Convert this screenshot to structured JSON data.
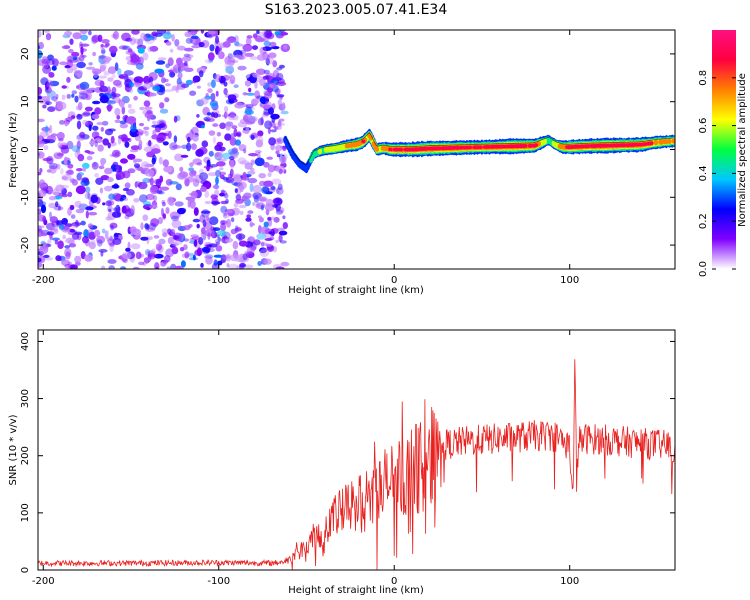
{
  "title": "S163.2023.005.07.41.E34",
  "chart_data": [
    {
      "type": "heatmap",
      "xlabel": "Height of straight line (km)",
      "ylabel": "Frequency (Hz)",
      "xlim": [
        -203,
        160
      ],
      "ylim": [
        -25,
        25
      ],
      "x_ticks": [
        "-200",
        "-100",
        "0",
        "100"
      ],
      "x_tick_values": [
        -200,
        -100,
        0,
        100
      ],
      "y_ticks": [
        "-20",
        "-10",
        "0",
        "10",
        "20"
      ],
      "y_tick_values": [
        -20,
        -10,
        0,
        10,
        20
      ],
      "colorbar": {
        "label": "Normalized spectral amplitude",
        "range": [
          0,
          1
        ],
        "ticks": [
          "0.0",
          "0.2",
          "0.4",
          "0.6",
          "0.8"
        ],
        "tick_values": [
          0.0,
          0.2,
          0.4,
          0.6,
          0.8
        ],
        "colormap": [
          "#ffffff",
          "#8000ff",
          "#0000ff",
          "#00c8ff",
          "#00ff40",
          "#ffff00",
          "#ff8000",
          "#ff0040",
          "#ff1080"
        ]
      },
      "noise_region": {
        "x_range": [
          -203,
          -62
        ],
        "amplitude_range": [
          0.05,
          0.3
        ]
      },
      "signal_ridge": {
        "x": [
          -62,
          -58,
          -54,
          -50,
          -46,
          -42,
          -38,
          -34,
          -30,
          -26,
          -22,
          -18,
          -14,
          -10,
          -6,
          -2,
          2,
          10,
          20,
          30,
          40,
          50,
          60,
          70,
          80,
          88,
          92,
          96,
          100,
          110,
          120,
          130,
          140,
          150,
          160
        ],
        "freq": [
          2.0,
          -1.0,
          -3.0,
          -4.0,
          -1.0,
          -0.3,
          0.0,
          0.2,
          0.5,
          0.8,
          1.0,
          1.5,
          3.0,
          0.0,
          0.3,
          0.0,
          0.0,
          0.0,
          0.2,
          0.3,
          0.4,
          0.5,
          0.6,
          0.7,
          0.8,
          2.0,
          1.0,
          0.5,
          0.5,
          0.7,
          0.8,
          0.9,
          1.0,
          1.5,
          1.8
        ],
        "amplitude": [
          0.2,
          0.35,
          0.25,
          0.3,
          0.35,
          0.45,
          0.5,
          0.55,
          0.6,
          0.65,
          0.7,
          0.75,
          0.7,
          0.6,
          0.65,
          0.75,
          0.85,
          0.9,
          0.95,
          0.9,
          0.85,
          0.8,
          0.9,
          0.95,
          0.85,
          0.4,
          0.5,
          0.7,
          0.85,
          0.9,
          0.95,
          0.9,
          0.85,
          0.7,
          0.6
        ]
      }
    },
    {
      "type": "line",
      "xlabel": "Height of straight line (km)",
      "ylabel": "SNR (10 * v/v)",
      "xlim": [
        -203,
        160
      ],
      "ylim": [
        0,
        420
      ],
      "x_ticks": [
        "-200",
        "-100",
        "0",
        "100"
      ],
      "x_tick_values": [
        -200,
        -100,
        0,
        100
      ],
      "y_ticks": [
        "0",
        "100",
        "200",
        "300",
        "400"
      ],
      "y_tick_values": [
        0,
        100,
        200,
        300,
        400
      ],
      "color": "#e8201e",
      "series": [
        {
          "x": [
            -203,
            -150,
            -100,
            -70,
            -62,
            -55,
            -50,
            -45,
            -40,
            -35,
            -30,
            -25,
            -20,
            -15,
            -10,
            -5,
            0,
            5,
            10,
            15,
            20,
            25,
            30,
            40,
            50,
            60,
            70,
            80,
            90,
            95,
            100,
            102,
            103,
            104,
            105,
            110,
            120,
            130,
            140,
            150,
            160
          ],
          "y": [
            12,
            12,
            13,
            12,
            15,
            30,
            45,
            60,
            75,
            90,
            100,
            110,
            115,
            125,
            135,
            150,
            160,
            165,
            175,
            180,
            195,
            215,
            220,
            225,
            228,
            230,
            232,
            235,
            235,
            230,
            215,
            120,
            380,
            150,
            225,
            230,
            228,
            225,
            222,
            220,
            215
          ]
        }
      ]
    }
  ]
}
